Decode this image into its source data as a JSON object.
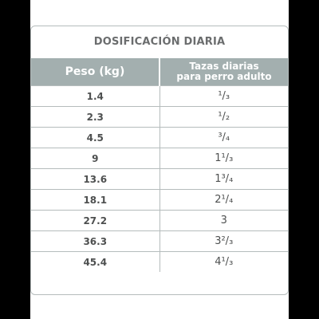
{
  "title": "DOSIFICACIÓN DIARIA",
  "headers": {
    "weight": "Peso (kg)",
    "cups_line1": "Tazas diarias",
    "cups_line2": "para perro adulto"
  },
  "rows": [
    {
      "weight": "1.4",
      "cups": "¹/₃"
    },
    {
      "weight": "2.3",
      "cups": "¹/₂"
    },
    {
      "weight": "4.5",
      "cups": "³/₄"
    },
    {
      "weight": "9",
      "cups": "1¹/₃"
    },
    {
      "weight": "13.6",
      "cups": "1³/₄"
    },
    {
      "weight": "18.1",
      "cups": "2¹/₄"
    },
    {
      "weight": "27.2",
      "cups": "3"
    },
    {
      "weight": "36.3",
      "cups": "3²/₃"
    },
    {
      "weight": "45.4",
      "cups": "4¹/₃"
    }
  ]
}
